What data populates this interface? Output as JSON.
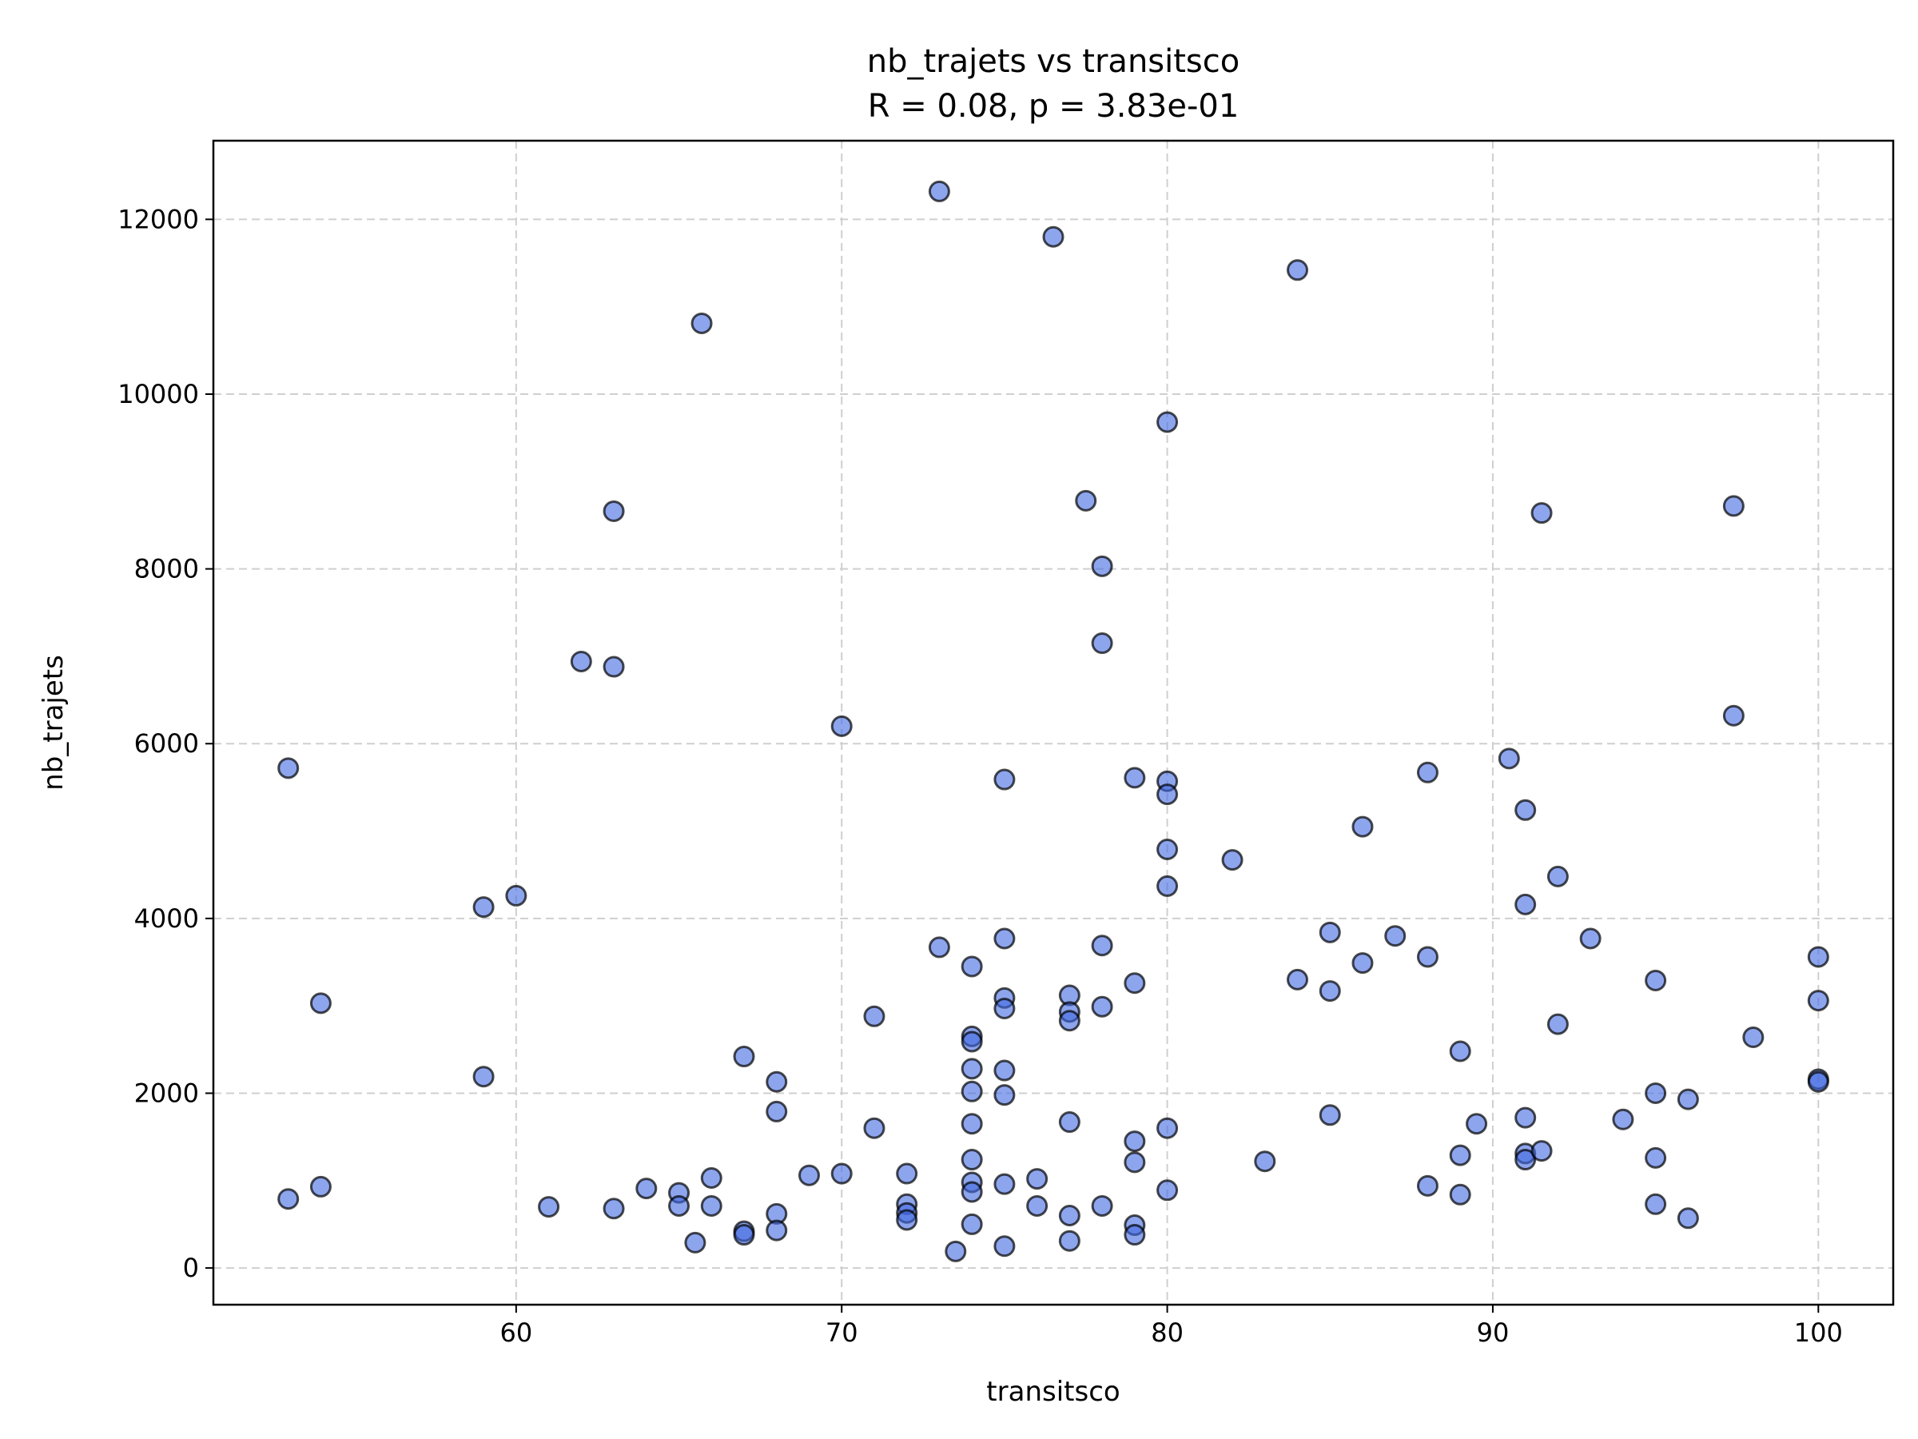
{
  "chart_data": {
    "type": "scatter",
    "title": "nb_trajets vs transitsco",
    "subtitle": "R = 0.08, p = 3.83e-01",
    "xlabel": "transitsco",
    "ylabel": "nb_trajets",
    "xlim": [
      50.7,
      102.3
    ],
    "ylim": [
      -420,
      12900
    ],
    "xticks": [
      60,
      70,
      80,
      90,
      100
    ],
    "yticks": [
      0,
      2000,
      4000,
      6000,
      8000,
      10000,
      12000
    ],
    "grid": true,
    "point_color": "#4169e1",
    "series": [
      {
        "x": [
          53,
          53,
          54,
          54,
          59,
          59,
          60,
          61,
          62,
          63,
          63,
          63,
          64,
          65,
          65,
          65.5,
          65.7,
          66,
          66,
          67,
          67,
          67,
          68,
          68,
          68,
          68,
          69,
          70,
          70,
          71,
          71,
          72,
          72,
          72,
          72,
          73,
          73,
          73.5,
          74,
          74,
          74,
          74,
          74,
          74,
          74,
          74,
          74,
          74,
          75,
          75,
          75,
          75,
          75,
          75,
          75,
          75,
          76,
          76,
          76.5,
          77,
          77,
          77,
          77,
          77,
          77,
          77.5,
          78,
          78,
          78,
          78,
          78,
          79,
          79,
          79,
          79,
          79,
          79,
          80,
          80,
          80,
          80,
          80,
          80,
          80,
          82,
          83,
          84,
          84,
          85,
          85,
          85,
          86,
          86,
          87,
          88,
          88,
          88,
          89,
          89,
          89,
          89.5,
          90.5,
          91,
          91,
          91,
          91,
          91,
          91.5,
          91.5,
          92,
          92,
          93,
          94,
          95,
          95,
          95,
          95,
          96,
          96,
          97.4,
          97.4,
          98,
          100,
          100,
          100,
          100
        ],
        "y": [
          5720,
          790,
          3030,
          930,
          4130,
          2190,
          4260,
          700,
          6940,
          8660,
          6880,
          680,
          910,
          860,
          710,
          290,
          10810,
          1030,
          710,
          2420,
          420,
          380,
          2130,
          1790,
          620,
          430,
          1060,
          6200,
          1080,
          2880,
          1600,
          1080,
          730,
          630,
          550,
          12320,
          3670,
          190,
          2650,
          3450,
          2590,
          2280,
          2020,
          1650,
          1240,
          980,
          870,
          500,
          5590,
          3770,
          3090,
          2970,
          2260,
          1980,
          960,
          250,
          1020,
          710,
          11800,
          3120,
          2930,
          2830,
          1670,
          600,
          310,
          8780,
          8030,
          7150,
          3690,
          2990,
          710,
          5610,
          3260,
          1450,
          1210,
          490,
          380,
          9680,
          5570,
          5420,
          4790,
          4370,
          1600,
          890,
          4670,
          1220,
          11420,
          3300,
          3840,
          3170,
          1750,
          5050,
          3490,
          3800,
          5670,
          3560,
          940,
          2480,
          1290,
          840,
          1650,
          5830,
          5240,
          4160,
          1720,
          1310,
          1240,
          8640,
          1340,
          4480,
          2790,
          3770,
          1700,
          3290,
          2000,
          1260,
          730,
          1930,
          570,
          8720,
          6320,
          2640,
          3560,
          3060,
          2160,
          2130
        ]
      }
    ]
  }
}
